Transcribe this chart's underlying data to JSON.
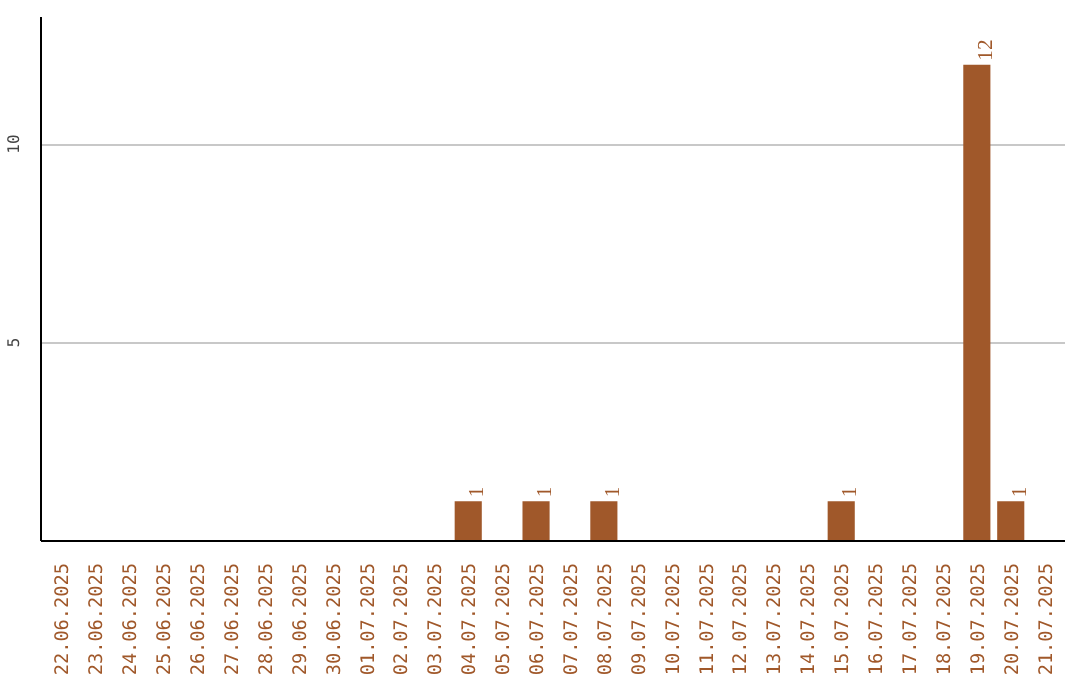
{
  "chart_data": {
    "type": "bar",
    "categories": [
      "22.06.2025",
      "23.06.2025",
      "24.06.2025",
      "25.06.2025",
      "26.06.2025",
      "27.06.2025",
      "28.06.2025",
      "29.06.2025",
      "30.06.2025",
      "01.07.2025",
      "02.07.2025",
      "03.07.2025",
      "04.07.2025",
      "05.07.2025",
      "06.07.2025",
      "07.07.2025",
      "08.07.2025",
      "09.07.2025",
      "10.07.2025",
      "11.07.2025",
      "12.07.2025",
      "13.07.2025",
      "14.07.2025",
      "15.07.2025",
      "16.07.2025",
      "17.07.2025",
      "18.07.2025",
      "19.07.2025",
      "20.07.2025",
      "21.07.2025"
    ],
    "values": [
      0,
      0,
      0,
      0,
      0,
      0,
      0,
      0,
      0,
      0,
      0,
      0,
      1,
      0,
      1,
      0,
      1,
      0,
      0,
      0,
      0,
      0,
      0,
      1,
      0,
      0,
      0,
      12,
      1,
      0
    ],
    "value_labels": [
      null,
      null,
      null,
      null,
      null,
      null,
      null,
      null,
      null,
      null,
      null,
      null,
      "1",
      null,
      "1",
      null,
      "1",
      null,
      null,
      null,
      null,
      null,
      null,
      "1",
      null,
      null,
      null,
      "12",
      "1",
      null
    ],
    "color": "#a0582a",
    "ylim": [
      0,
      13.2
    ],
    "yticks": [
      5,
      10
    ],
    "grid": "y"
  }
}
